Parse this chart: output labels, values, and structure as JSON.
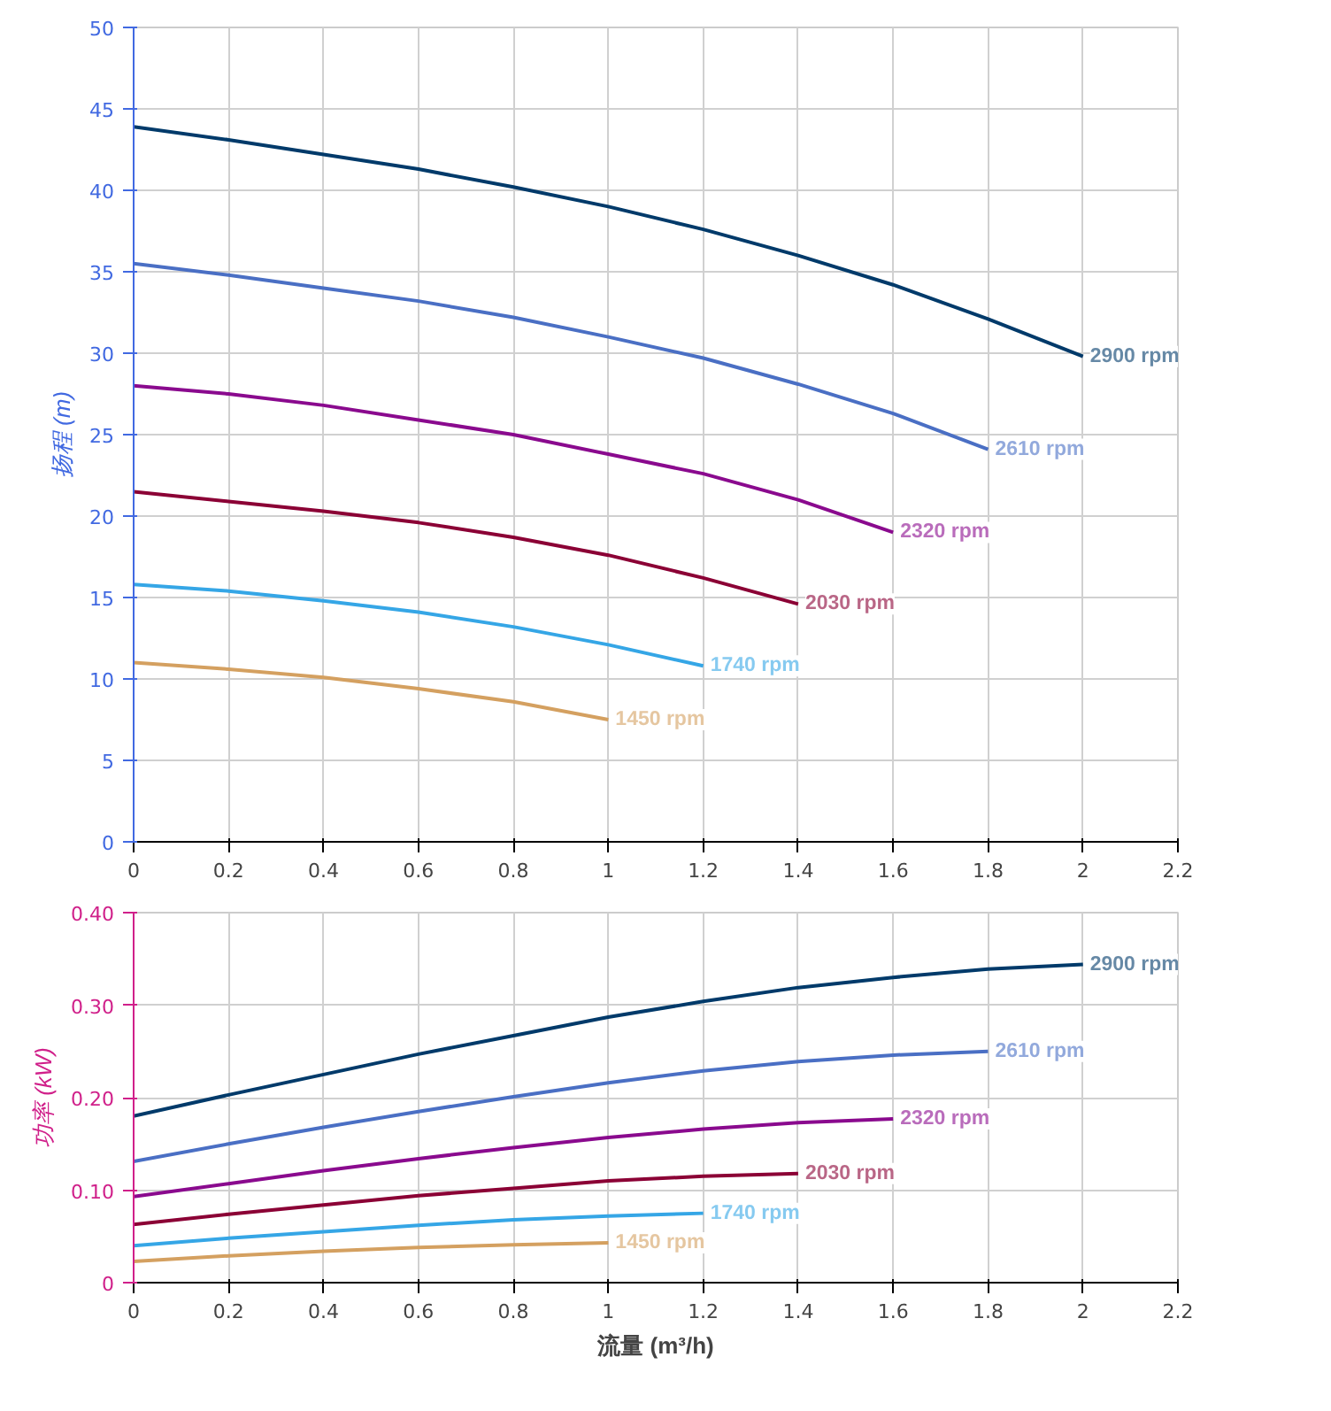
{
  "chart_data": [
    {
      "type": "line",
      "ylabel": "扬程 (m)",
      "xlim": [
        0,
        2.2
      ],
      "xticks": [
        0,
        0.2,
        0.4,
        0.6,
        0.8,
        1,
        1.2,
        1.4,
        1.6,
        1.8,
        2,
        2.2
      ],
      "ylim": [
        0,
        50
      ],
      "yticks": [
        0,
        5,
        10,
        15,
        20,
        25,
        30,
        35,
        40,
        45,
        50
      ],
      "grid": true,
      "legend": false,
      "marker": "none",
      "line_style": "solid",
      "series": [
        {
          "name": "2900 rpm",
          "color": "#003a6a",
          "x": [
            0,
            0.2,
            0.4,
            0.6,
            0.8,
            1.0,
            1.2,
            1.4,
            1.6,
            1.8,
            2.0
          ],
          "values": [
            43.9,
            43.1,
            42.2,
            41.3,
            40.2,
            39.0,
            37.6,
            36.0,
            34.2,
            32.1,
            29.8
          ]
        },
        {
          "name": "2610 rpm",
          "color": "#4a6fc4",
          "x": [
            0,
            0.2,
            0.4,
            0.6,
            0.8,
            1.0,
            1.2,
            1.4,
            1.6,
            1.8
          ],
          "values": [
            35.5,
            34.8,
            34.0,
            33.2,
            32.2,
            31.0,
            29.7,
            28.1,
            26.3,
            24.1
          ]
        },
        {
          "name": "2320 rpm",
          "color": "#8a0a8e",
          "x": [
            0,
            0.2,
            0.4,
            0.6,
            0.8,
            1.0,
            1.2,
            1.4,
            1.6
          ],
          "values": [
            28.0,
            27.5,
            26.8,
            25.9,
            25.0,
            23.8,
            22.6,
            21.0,
            19.0
          ]
        },
        {
          "name": "2030 rpm",
          "color": "#8b0035",
          "x": [
            0,
            0.2,
            0.4,
            0.6,
            0.8,
            1.0,
            1.2,
            1.4
          ],
          "values": [
            21.5,
            20.9,
            20.3,
            19.6,
            18.7,
            17.6,
            16.2,
            14.6
          ]
        },
        {
          "name": "1740 rpm",
          "color": "#35a6e6",
          "x": [
            0,
            0.2,
            0.4,
            0.6,
            0.8,
            1.0,
            1.2
          ],
          "values": [
            15.8,
            15.4,
            14.8,
            14.1,
            13.2,
            12.1,
            10.8
          ]
        },
        {
          "name": "1450 rpm",
          "color": "#d4a060",
          "x": [
            0,
            0.2,
            0.4,
            0.6,
            0.8,
            1.0
          ],
          "values": [
            11.0,
            10.6,
            10.1,
            9.4,
            8.6,
            7.5
          ]
        }
      ]
    },
    {
      "type": "line",
      "ylabel": "功率 (kW)",
      "xlabel": "流量 (m³/h)",
      "xlim": [
        0,
        2.2
      ],
      "xticks": [
        0,
        0.2,
        0.4,
        0.6,
        0.8,
        1,
        1.2,
        1.4,
        1.6,
        1.8,
        2,
        2.2
      ],
      "ylim": [
        0,
        0.4
      ],
      "yticks": [
        0,
        {
          "value": 0.1,
          "label": "0.10"
        },
        {
          "value": 0.2,
          "label": "0.20"
        },
        {
          "value": 0.3,
          "label": "0.30"
        },
        {
          "value": 0.4,
          "label": "0.40"
        }
      ],
      "grid": true,
      "legend": false,
      "marker": "none",
      "line_style": "solid",
      "series": [
        {
          "name": "2900 rpm",
          "color": "#003a6a",
          "x": [
            0,
            0.2,
            0.4,
            0.6,
            0.8,
            1.0,
            1.2,
            1.4,
            1.6,
            1.8,
            2.0
          ],
          "values": [
            0.18,
            0.203,
            0.225,
            0.247,
            0.267,
            0.287,
            0.304,
            0.319,
            0.33,
            0.339,
            0.344
          ]
        },
        {
          "name": "2610 rpm",
          "color": "#4a6fc4",
          "x": [
            0,
            0.2,
            0.4,
            0.6,
            0.8,
            1.0,
            1.2,
            1.4,
            1.6,
            1.8
          ],
          "values": [
            0.131,
            0.15,
            0.168,
            0.185,
            0.201,
            0.216,
            0.229,
            0.239,
            0.246,
            0.25
          ]
        },
        {
          "name": "2320 rpm",
          "color": "#8a0a8e",
          "x": [
            0,
            0.2,
            0.4,
            0.6,
            0.8,
            1.0,
            1.2,
            1.4,
            1.6
          ],
          "values": [
            0.093,
            0.107,
            0.121,
            0.134,
            0.146,
            0.157,
            0.166,
            0.173,
            0.177
          ]
        },
        {
          "name": "2030 rpm",
          "color": "#8b0035",
          "x": [
            0,
            0.2,
            0.4,
            0.6,
            0.8,
            1.0,
            1.2,
            1.4
          ],
          "values": [
            0.063,
            0.074,
            0.084,
            0.094,
            0.102,
            0.11,
            0.115,
            0.118
          ]
        },
        {
          "name": "1740 rpm",
          "color": "#35a6e6",
          "x": [
            0,
            0.2,
            0.4,
            0.6,
            0.8,
            1.0,
            1.2
          ],
          "values": [
            0.04,
            0.048,
            0.055,
            0.062,
            0.068,
            0.072,
            0.075
          ]
        },
        {
          "name": "1450 rpm",
          "color": "#d4a060",
          "x": [
            0,
            0.2,
            0.4,
            0.6,
            0.8,
            1.0
          ],
          "values": [
            0.023,
            0.029,
            0.034,
            0.038,
            0.041,
            0.043
          ]
        }
      ]
    }
  ]
}
